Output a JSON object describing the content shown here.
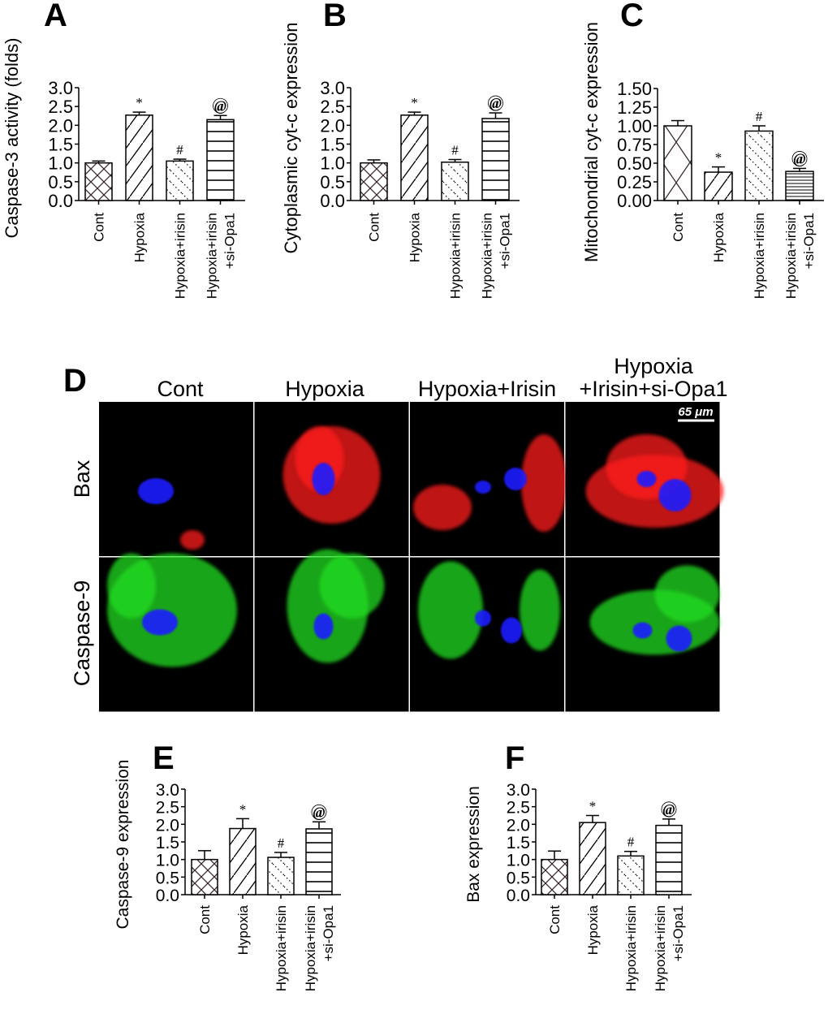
{
  "chart_data": [
    {
      "panel": "A",
      "type": "bar",
      "ylabel": "Caspase-3 activity (folds)",
      "categories": [
        "Cont",
        "Hypoxia",
        "Hypoxia+irisin",
        "Hypoxia+irisin\n+si-Opa1"
      ],
      "values": [
        1.0,
        2.27,
        1.05,
        2.15
      ],
      "errors": [
        0.05,
        0.08,
        0.05,
        0.11
      ],
      "annotations": [
        "",
        "*",
        "#",
        "@"
      ],
      "patterns": [
        "crosshatch",
        "diagonal",
        "dotted-diagonal",
        "horizontal"
      ],
      "ylim": [
        0,
        3.0
      ],
      "yticks": [
        "0.0",
        "0.5",
        "1.0",
        "1.5",
        "2.0",
        "2.5",
        "3.0"
      ]
    },
    {
      "panel": "B",
      "type": "bar",
      "ylabel": "Cytoplasmic cyt-c expression",
      "categories": [
        "Cont",
        "Hypoxia",
        "Hypoxia+irisin",
        "Hypoxia+irisin\n+si-Opa1"
      ],
      "values": [
        1.0,
        2.27,
        1.02,
        2.18
      ],
      "errors": [
        0.08,
        0.08,
        0.07,
        0.15
      ],
      "annotations": [
        "",
        "*",
        "#",
        "@"
      ],
      "patterns": [
        "crosshatch",
        "diagonal",
        "dotted-diagonal",
        "horizontal"
      ],
      "ylim": [
        0,
        3.0
      ],
      "yticks": [
        "0.0",
        "0.5",
        "1.0",
        "1.5",
        "2.0",
        "2.5",
        "3.0"
      ]
    },
    {
      "panel": "C",
      "type": "bar",
      "ylabel": "Mitochondrial cyt-c expression",
      "categories": [
        "Cont",
        "Hypoxia",
        "Hypoxia+irisin",
        "Hypoxia+irisin\n+si-Opa1"
      ],
      "values": [
        1.0,
        0.38,
        0.93,
        0.39
      ],
      "errors": [
        0.07,
        0.07,
        0.07,
        0.04
      ],
      "annotations": [
        "",
        "*",
        "#",
        "@"
      ],
      "patterns": [
        "large-crosshatch",
        "diagonal",
        "dotted-diagonal",
        "fine-horizontal"
      ],
      "ylim": [
        0,
        1.5
      ],
      "yticks": [
        "0.00",
        "0.25",
        "0.50",
        "0.75",
        "1.00",
        "1.25",
        "1.50"
      ]
    },
    {
      "panel": "E",
      "type": "bar",
      "ylabel": "Caspase-9 expression",
      "categories": [
        "Cont",
        "Hypoxia",
        "Hypoxia+irisin",
        "Hypoxia+irisin\n+si-Opa1"
      ],
      "values": [
        1.0,
        1.88,
        1.06,
        1.87
      ],
      "errors": [
        0.25,
        0.28,
        0.14,
        0.2
      ],
      "annotations": [
        "",
        "*",
        "#",
        "@"
      ],
      "patterns": [
        "crosshatch",
        "diagonal",
        "dotted-diagonal",
        "horizontal"
      ],
      "ylim": [
        0,
        3.0
      ],
      "yticks": [
        "0.0",
        "0.5",
        "1.0",
        "1.5",
        "2.0",
        "2.5",
        "3.0"
      ]
    },
    {
      "panel": "F",
      "type": "bar",
      "ylabel": "Bax expression",
      "categories": [
        "Cont",
        "Hypoxia",
        "Hypoxia+irisin",
        "Hypoxia+irisin\n+si-Opa1"
      ],
      "values": [
        1.0,
        2.05,
        1.1,
        1.97
      ],
      "errors": [
        0.24,
        0.2,
        0.13,
        0.18
      ],
      "annotations": [
        "",
        "*",
        "#",
        "@"
      ],
      "patterns": [
        "crosshatch",
        "diagonal",
        "dotted-diagonal",
        "horizontal"
      ],
      "ylim": [
        0,
        3.0
      ],
      "yticks": [
        "0.0",
        "0.5",
        "1.0",
        "1.5",
        "2.0",
        "2.5",
        "3.0"
      ]
    }
  ],
  "microscopy": {
    "panel": "D",
    "columns": [
      "Cont",
      "Hypoxia",
      "Hypoxia+Irisin",
      "Hypoxia\n+Irisin+si-Opa1"
    ],
    "rows": [
      "Bax",
      "Caspase-9"
    ],
    "scale_bar": "65 μm",
    "colors": {
      "nucleus": "#1a1aff",
      "bax": "#ff1a1a",
      "caspase9": "#22dd22",
      "background": "#000000"
    }
  }
}
